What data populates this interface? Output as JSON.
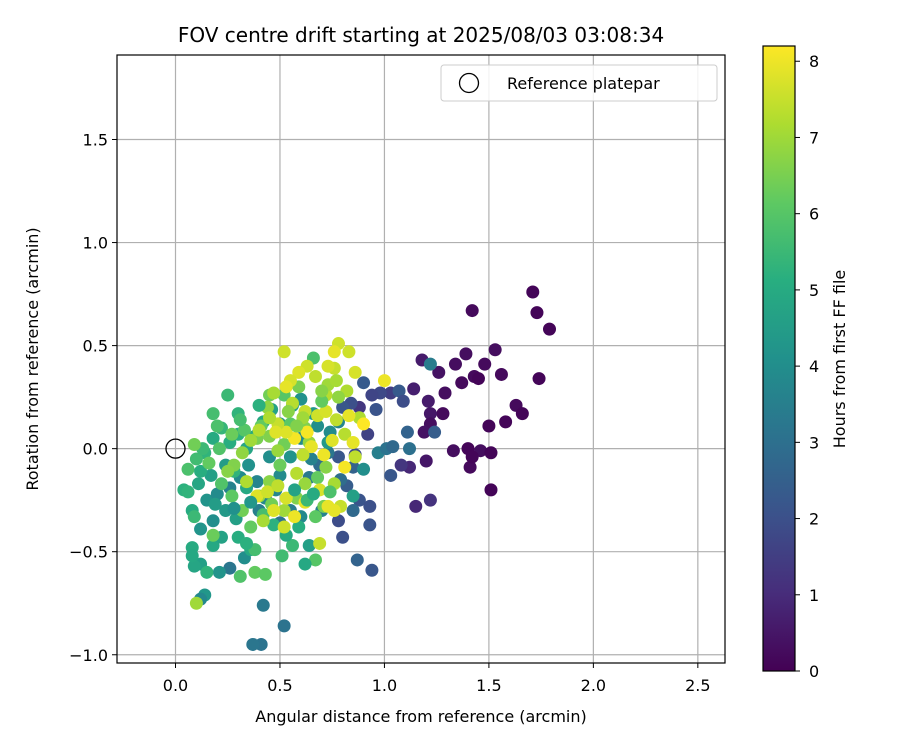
{
  "chart_data": {
    "type": "scatter",
    "title": "FOV centre drift starting at 2025/08/03 03:08:34",
    "xlabel": "Angular distance from reference (arcmin)",
    "ylabel": "Rotation from reference (arcmin)",
    "xlim": [
      -0.28,
      2.63
    ],
    "ylim": [
      -1.04,
      1.91
    ],
    "xticks": [
      0.0,
      0.5,
      1.0,
      1.5,
      2.0,
      2.5
    ],
    "xtick_labels": [
      "0.0",
      "0.5",
      "1.0",
      "1.5",
      "2.0",
      "2.5"
    ],
    "yticks": [
      -1.0,
      -0.5,
      0.0,
      0.5,
      1.0,
      1.5
    ],
    "ytick_labels": [
      "−1.0",
      "−0.5",
      "0.0",
      "0.5",
      "1.0",
      "1.5"
    ],
    "grid": true,
    "colormap": "viridis",
    "colorbar": {
      "label": "Hours from first FF file",
      "range": [
        0,
        8.2
      ],
      "ticks": [
        0,
        1,
        2,
        3,
        4,
        5,
        6,
        7,
        8
      ],
      "tick_labels": [
        "0",
        "1",
        "2",
        "3",
        "4",
        "5",
        "6",
        "7",
        "8"
      ]
    },
    "legend": {
      "position": "top-right",
      "entries": [
        "Reference platepar"
      ]
    },
    "reference_point": {
      "x": 0.0,
      "y": 0.0,
      "marker": "hollow-circle"
    },
    "points": [
      [
        1.71,
        0.76,
        0.1
      ],
      [
        1.73,
        0.66,
        0.1
      ],
      [
        1.79,
        0.58,
        0.1
      ],
      [
        1.42,
        0.67,
        0.2
      ],
      [
        1.53,
        0.48,
        0.3
      ],
      [
        1.39,
        0.46,
        0.3
      ],
      [
        1.48,
        0.41,
        0.2
      ],
      [
        1.56,
        0.36,
        0.2
      ],
      [
        1.43,
        0.35,
        0.2
      ],
      [
        1.37,
        0.32,
        0.2
      ],
      [
        1.45,
        0.34,
        0.1
      ],
      [
        1.74,
        0.34,
        0.1
      ],
      [
        1.63,
        0.21,
        0.2
      ],
      [
        1.66,
        0.17,
        0.1
      ],
      [
        1.58,
        0.13,
        0.1
      ],
      [
        1.5,
        0.11,
        0.1
      ],
      [
        1.28,
        0.17,
        0.2
      ],
      [
        1.22,
        0.17,
        0.5
      ],
      [
        1.18,
        0.43,
        0.6
      ],
      [
        1.26,
        0.37,
        0.4
      ],
      [
        1.34,
        0.41,
        0.3
      ],
      [
        1.22,
        0.12,
        0.3
      ],
      [
        1.19,
        0.08,
        0.4
      ],
      [
        1.14,
        0.29,
        0.7
      ],
      [
        1.21,
        0.23,
        0.6
      ],
      [
        1.29,
        0.27,
        0.3
      ],
      [
        1.4,
        0.0,
        0.1
      ],
      [
        1.46,
        -0.01,
        0.3
      ],
      [
        1.51,
        -0.02,
        0.1
      ],
      [
        1.33,
        -0.01,
        0.3
      ],
      [
        1.41,
        -0.09,
        0.2
      ],
      [
        1.42,
        -0.04,
        0.1
      ],
      [
        1.2,
        -0.06,
        0.5
      ],
      [
        1.12,
        -0.09,
        0.9
      ],
      [
        1.08,
        -0.08,
        1.3
      ],
      [
        1.15,
        -0.28,
        0.9
      ],
      [
        1.22,
        -0.25,
        1.2
      ],
      [
        1.51,
        -0.2,
        0.1
      ],
      [
        1.03,
        0.27,
        1.5
      ],
      [
        0.98,
        0.27,
        1.8
      ],
      [
        0.96,
        0.19,
        2.1
      ],
      [
        1.07,
        0.28,
        2.3
      ],
      [
        1.09,
        0.23,
        1.9
      ],
      [
        0.94,
        0.26,
        1.7
      ],
      [
        0.9,
        0.32,
        2.3
      ],
      [
        0.88,
        0.2,
        1.3
      ],
      [
        0.84,
        0.22,
        2.0
      ],
      [
        0.92,
        0.07,
        1.6
      ],
      [
        0.8,
        0.2,
        2.2
      ],
      [
        1.11,
        0.08,
        2.6
      ],
      [
        1.12,
        0.0,
        3.0
      ],
      [
        1.24,
        0.08,
        2.4
      ],
      [
        1.22,
        0.41,
        3.4
      ],
      [
        0.86,
        -0.03,
        1.9
      ],
      [
        0.85,
        -0.09,
        2.6
      ],
      [
        0.78,
        -0.04,
        2.2
      ],
      [
        0.82,
        -0.18,
        2.4
      ],
      [
        0.88,
        -0.25,
        2.1
      ],
      [
        0.93,
        -0.28,
        2.0
      ],
      [
        0.85,
        -0.3,
        2.8
      ],
      [
        0.78,
        -0.35,
        1.9
      ],
      [
        0.93,
        -0.37,
        2.1
      ],
      [
        0.8,
        -0.43,
        2.0
      ],
      [
        0.87,
        -0.54,
        2.6
      ],
      [
        0.94,
        -0.59,
        2.2
      ],
      [
        0.79,
        -0.15,
        2.9
      ],
      [
        0.73,
        -0.02,
        3.2
      ],
      [
        0.69,
        -0.08,
        2.9
      ],
      [
        0.64,
        -0.14,
        3.3
      ],
      [
        0.7,
        -0.3,
        3.6
      ],
      [
        0.6,
        -0.33,
        3.8
      ],
      [
        0.55,
        -0.3,
        3.4
      ],
      [
        0.5,
        -0.36,
        3.1
      ],
      [
        0.48,
        -0.2,
        3.7
      ],
      [
        0.52,
        -0.86,
        3.1
      ],
      [
        0.41,
        -0.95,
        3.1
      ],
      [
        0.37,
        -0.95,
        3.2
      ],
      [
        0.42,
        -0.76,
        3.3
      ],
      [
        0.26,
        -0.58,
        3.2
      ],
      [
        0.14,
        -0.71,
        4.3
      ],
      [
        0.12,
        -0.73,
        3.8
      ],
      [
        0.21,
        -0.6,
        4.2
      ],
      [
        0.33,
        -0.53,
        4.0
      ],
      [
        0.12,
        -0.56,
        4.6
      ],
      [
        0.09,
        -0.57,
        4.8
      ],
      [
        0.08,
        -0.48,
        5.0
      ],
      [
        0.18,
        -0.47,
        4.9
      ],
      [
        0.22,
        -0.43,
        4.7
      ],
      [
        0.3,
        -0.43,
        5.1
      ],
      [
        0.36,
        -0.49,
        4.9
      ],
      [
        0.29,
        -0.34,
        4.6
      ],
      [
        0.24,
        -0.3,
        4.4
      ],
      [
        0.18,
        -0.35,
        4.0
      ],
      [
        0.12,
        -0.39,
        4.2
      ],
      [
        0.08,
        -0.3,
        5.0
      ],
      [
        0.15,
        -0.25,
        4.2
      ],
      [
        0.2,
        -0.22,
        3.9
      ],
      [
        0.26,
        -0.19,
        3.6
      ],
      [
        0.31,
        -0.14,
        3.9
      ],
      [
        0.35,
        -0.08,
        4.1
      ],
      [
        0.39,
        -0.16,
        3.7
      ],
      [
        0.45,
        -0.04,
        4.0
      ],
      [
        0.43,
        -0.24,
        3.8
      ],
      [
        0.4,
        -0.3,
        3.5
      ],
      [
        0.5,
        -0.13,
        3.9
      ],
      [
        0.55,
        -0.04,
        4.2
      ],
      [
        0.6,
        0.05,
        3.9
      ],
      [
        0.65,
        -0.05,
        3.6
      ],
      [
        0.68,
        0.11,
        4.0
      ],
      [
        0.74,
        0.08,
        3.9
      ],
      [
        0.73,
        0.03,
        4.4
      ],
      [
        0.78,
        0.13,
        3.7
      ],
      [
        0.66,
        0.17,
        4.3
      ],
      [
        0.6,
        0.24,
        4.1
      ],
      [
        0.56,
        0.21,
        4.5
      ],
      [
        0.5,
        0.12,
        4.4
      ],
      [
        0.46,
        0.19,
        4.7
      ],
      [
        0.42,
        0.13,
        4.9
      ],
      [
        0.38,
        0.06,
        5.0
      ],
      [
        0.34,
        0.0,
        4.8
      ],
      [
        0.3,
        0.07,
        5.2
      ],
      [
        0.26,
        0.03,
        5.1
      ],
      [
        0.22,
        0.1,
        5.4
      ],
      [
        0.18,
        0.05,
        5.0
      ],
      [
        0.14,
        -0.02,
        5.3
      ],
      [
        0.1,
        -0.05,
        5.6
      ],
      [
        0.06,
        -0.1,
        5.8
      ],
      [
        0.04,
        -0.2,
        5.2
      ],
      [
        0.11,
        -0.17,
        4.8
      ],
      [
        0.17,
        -0.13,
        4.6
      ],
      [
        0.24,
        -0.08,
        4.5
      ],
      [
        0.28,
        -0.11,
        5.3
      ],
      [
        0.34,
        -0.19,
        4.9
      ],
      [
        0.18,
        0.17,
        5.7
      ],
      [
        0.25,
        0.26,
        5.5
      ],
      [
        0.3,
        0.17,
        5.3
      ],
      [
        0.2,
        0.11,
        5.8
      ],
      [
        0.12,
        -0.11,
        5.1
      ],
      [
        0.09,
        -0.33,
        5.5
      ],
      [
        0.08,
        -0.52,
        4.9
      ],
      [
        0.15,
        -0.6,
        5.3
      ],
      [
        0.31,
        -0.62,
        5.9
      ],
      [
        0.38,
        -0.6,
        6.2
      ],
      [
        0.43,
        -0.61,
        6.1
      ],
      [
        0.38,
        -0.49,
        5.7
      ],
      [
        0.34,
        -0.46,
        5.2
      ],
      [
        0.18,
        -0.42,
        6.3
      ],
      [
        0.1,
        -0.75,
        7.0
      ],
      [
        0.56,
        -0.47,
        5.5
      ],
      [
        0.64,
        -0.47,
        4.6
      ],
      [
        0.67,
        -0.54,
        6.0
      ],
      [
        0.62,
        -0.56,
        4.9
      ],
      [
        0.59,
        -0.38,
        5.1
      ],
      [
        0.53,
        -0.42,
        5.0
      ],
      [
        0.47,
        -0.37,
        5.2
      ],
      [
        0.42,
        -0.32,
        5.7
      ],
      [
        0.36,
        -0.38,
        6.2
      ],
      [
        0.32,
        -0.3,
        6.4
      ],
      [
        0.27,
        -0.23,
        6.1
      ],
      [
        0.22,
        -0.17,
        5.9
      ],
      [
        0.16,
        -0.07,
        6.2
      ],
      [
        0.13,
        0.0,
        5.5
      ],
      [
        0.21,
        0.0,
        5.9
      ],
      [
        0.27,
        0.07,
        6.3
      ],
      [
        0.33,
        0.09,
        6.0
      ],
      [
        0.41,
        0.11,
        6.2
      ],
      [
        0.45,
        0.06,
        6.6
      ],
      [
        0.52,
        0.02,
        6.4
      ],
      [
        0.55,
        0.12,
        6.1
      ],
      [
        0.62,
        0.1,
        6.6
      ],
      [
        0.64,
        0.03,
        6.9
      ],
      [
        0.59,
        0.3,
        6.5
      ],
      [
        0.52,
        0.26,
        6.0
      ],
      [
        0.45,
        0.26,
        6.4
      ],
      [
        0.44,
        0.2,
        6.8
      ],
      [
        0.39,
        0.05,
        6.5
      ],
      [
        0.5,
        -0.08,
        6.3
      ],
      [
        0.45,
        -0.16,
        6.7
      ],
      [
        0.4,
        -0.23,
        6.9
      ],
      [
        0.46,
        -0.27,
        6.4
      ],
      [
        0.52,
        -0.3,
        7.0
      ],
      [
        0.58,
        -0.24,
        6.6
      ],
      [
        0.62,
        -0.17,
        6.9
      ],
      [
        0.68,
        -0.14,
        6.2
      ],
      [
        0.72,
        -0.09,
        6.7
      ],
      [
        0.76,
        -0.17,
        7.1
      ],
      [
        0.79,
        -0.28,
        7.5
      ],
      [
        0.76,
        -0.3,
        7.9
      ],
      [
        0.71,
        -0.28,
        6.5
      ],
      [
        0.67,
        -0.33,
        6.1
      ],
      [
        0.72,
        0.26,
        7.3
      ],
      [
        0.76,
        0.39,
        7.5
      ],
      [
        0.78,
        0.51,
        7.6
      ],
      [
        0.76,
        0.47,
        7.9
      ],
      [
        0.83,
        0.47,
        7.6
      ],
      [
        0.86,
        0.37,
        7.7
      ],
      [
        0.82,
        0.28,
        7.2
      ],
      [
        0.78,
        0.25,
        6.8
      ],
      [
        0.73,
        0.31,
        7.0
      ],
      [
        0.66,
        0.44,
        5.8
      ],
      [
        0.63,
        0.4,
        7.6
      ],
      [
        0.59,
        0.37,
        7.8
      ],
      [
        0.55,
        0.33,
        7.7
      ],
      [
        0.52,
        0.47,
        7.6
      ],
      [
        0.53,
        0.3,
        7.9
      ],
      [
        0.56,
        0.22,
        7.3
      ],
      [
        0.62,
        0.18,
        7.5
      ],
      [
        0.68,
        0.16,
        7.6
      ],
      [
        0.72,
        0.18,
        7.7
      ],
      [
        0.77,
        0.14,
        7.4
      ],
      [
        0.81,
        0.07,
        7.3
      ],
      [
        0.85,
        0.03,
        7.9
      ],
      [
        0.88,
        0.15,
        7.2
      ],
      [
        0.83,
        0.16,
        7.9
      ],
      [
        0.75,
        0.04,
        7.8
      ],
      [
        0.71,
        -0.03,
        8.0
      ],
      [
        0.65,
        0.01,
        7.9
      ],
      [
        0.61,
        -0.03,
        7.4
      ],
      [
        0.57,
        0.05,
        8.1
      ],
      [
        0.53,
        0.08,
        7.8
      ],
      [
        0.49,
        0.12,
        7.5
      ],
      [
        0.45,
        0.15,
        7.2
      ],
      [
        0.4,
        0.09,
        7.3
      ],
      [
        0.36,
        0.04,
        7.0
      ],
      [
        0.32,
        -0.02,
        6.8
      ],
      [
        0.28,
        -0.08,
        6.6
      ],
      [
        0.34,
        -0.16,
        7.2
      ],
      [
        0.39,
        -0.23,
        7.8
      ],
      [
        0.44,
        -0.21,
        7.6
      ],
      [
        0.49,
        -0.18,
        7.4
      ],
      [
        0.53,
        -0.24,
        7.7
      ],
      [
        0.57,
        -0.33,
        8.0
      ],
      [
        0.52,
        -0.38,
        7.6
      ],
      [
        0.47,
        -0.3,
        7.8
      ],
      [
        0.42,
        -0.35,
        7.1
      ],
      [
        0.69,
        -0.46,
        7.5
      ],
      [
        0.73,
        -0.28,
        7.9
      ],
      [
        0.81,
        -0.09,
        8.1
      ],
      [
        0.9,
        0.12,
        8.2
      ],
      [
        1.0,
        0.33,
        8.0
      ],
      [
        0.86,
        -0.04,
        7.4
      ],
      [
        0.63,
        0.08,
        8.1
      ],
      [
        0.61,
        0.15,
        7.0
      ],
      [
        0.58,
        0.11,
        6.6
      ],
      [
        0.48,
        0.08,
        7.8
      ],
      [
        0.54,
        0.18,
        6.7
      ],
      [
        0.58,
        -0.12,
        7.3
      ],
      [
        0.62,
        -0.26,
        7.9
      ],
      [
        0.69,
        -0.2,
        7.7
      ],
      [
        0.7,
        0.23,
        6.2
      ],
      [
        0.49,
        -0.01,
        6.9
      ],
      [
        0.25,
        -0.11,
        6.7
      ],
      [
        0.31,
        0.14,
        5.7
      ],
      [
        0.4,
        0.21,
        5.2
      ],
      [
        0.47,
        0.27,
        7.1
      ],
      [
        0.51,
        -0.52,
        5.6
      ],
      [
        0.09,
        0.02,
        6.4
      ],
      [
        0.06,
        -0.21,
        5.3
      ],
      [
        0.19,
        -0.27,
        4.5
      ],
      [
        0.28,
        -0.29,
        4.1
      ],
      [
        0.36,
        -0.26,
        4.3
      ],
      [
        0.57,
        -0.2,
        4.7
      ],
      [
        0.63,
        -0.25,
        5.5
      ],
      [
        0.66,
        -0.22,
        5.0
      ],
      [
        0.74,
        -0.21,
        5.8
      ],
      [
        0.85,
        -0.23,
        4.6
      ],
      [
        0.9,
        -0.1,
        4.0
      ],
      [
        0.97,
        -0.02,
        3.5
      ],
      [
        1.03,
        -0.13,
        2.2
      ],
      [
        1.01,
        0.0,
        3.1
      ],
      [
        1.04,
        0.01,
        2.8
      ],
      [
        0.73,
        0.4,
        7.7
      ],
      [
        0.67,
        0.35,
        7.4
      ],
      [
        0.77,
        0.33,
        7.1
      ],
      [
        0.7,
        0.28,
        6.7
      ]
    ]
  }
}
